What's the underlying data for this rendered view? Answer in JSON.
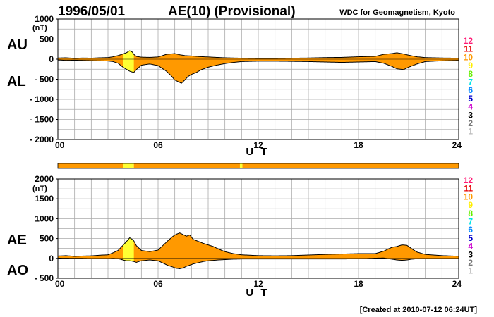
{
  "header": {
    "date": "1996/05/01",
    "title": "AE(10) (Provisional)",
    "source": "WDC for Geomagnetism, Kyoto"
  },
  "footer": {
    "created": "[Created at 2010-07-12 06:24UT]"
  },
  "colors": {
    "fill_main": "#ff9900",
    "fill_highlight": "#ffff33",
    "outline": "#000000",
    "grid": "#aaaaaa",
    "status_bar": "#ff9900"
  },
  "legend": {
    "items": [
      {
        "label": "12",
        "color": "#ff1a75"
      },
      {
        "label": "11",
        "color": "#e60000"
      },
      {
        "label": "10",
        "color": "#ff9900"
      },
      {
        "label": "9",
        "color": "#ffee00"
      },
      {
        "label": "8",
        "color": "#66ee00"
      },
      {
        "label": "7",
        "color": "#00e6e6"
      },
      {
        "label": "6",
        "color": "#0088ff"
      },
      {
        "label": "5",
        "color": "#0000cc"
      },
      {
        "label": "4",
        "color": "#cc00cc"
      },
      {
        "label": "3",
        "color": "#000000"
      },
      {
        "label": "2",
        "color": "#777777"
      },
      {
        "label": "1",
        "color": "#bbbbbb"
      }
    ]
  },
  "status_bar": {
    "segments": [
      {
        "from": 0,
        "to": 3.9,
        "color": "#ff9900"
      },
      {
        "from": 3.9,
        "to": 4.55,
        "color": "#ffff33"
      },
      {
        "from": 4.55,
        "to": 10.9,
        "color": "#ff9900"
      },
      {
        "from": 10.9,
        "to": 11.05,
        "color": "#ffff33"
      },
      {
        "from": 11.05,
        "to": 24,
        "color": "#ff9900"
      }
    ]
  },
  "chart_data": [
    {
      "type": "area",
      "xlabel": "U T",
      "unit": "(nT)",
      "labels_side": {
        "upper": "AU",
        "lower": "AL"
      },
      "xlim": [
        0,
        24
      ],
      "ylim": [
        -2000,
        1000
      ],
      "y_ticks": [
        1000,
        500,
        0,
        -500,
        -1000,
        -1500,
        -2000
      ],
      "y_tick_labels": [
        "1000",
        "500",
        "0",
        "- 500",
        "- 1000",
        "- 1500",
        "- 2000"
      ],
      "x_ticks": [
        0,
        6,
        12,
        18,
        24
      ],
      "x_tick_labels": [
        "00",
        "06",
        "12",
        "18",
        "24"
      ],
      "grid": true,
      "highlight_x": [
        3.9,
        4.55
      ],
      "series": [
        {
          "name": "AU",
          "x": [
            0,
            0.5,
            1,
            1.5,
            2,
            2.5,
            3,
            3.3,
            3.6,
            3.9,
            4.1,
            4.3,
            4.45,
            4.55,
            4.7,
            5.0,
            5.5,
            6.0,
            6.5,
            7.0,
            7.3,
            7.6,
            8.0,
            8.5,
            9.0,
            9.5,
            10.0,
            10.5,
            11.0,
            12.0,
            13.0,
            14.0,
            15.0,
            16.0,
            17.0,
            18.0,
            19.0,
            19.5,
            20.0,
            20.3,
            20.7,
            21.0,
            21.5,
            22.0,
            23.0,
            24.0
          ],
          "values": [
            30,
            35,
            20,
            30,
            25,
            35,
            40,
            60,
            90,
            130,
            160,
            210,
            180,
            120,
            70,
            50,
            45,
            55,
            120,
            140,
            110,
            90,
            80,
            65,
            55,
            45,
            35,
            30,
            25,
            20,
            20,
            25,
            30,
            40,
            45,
            60,
            70,
            120,
            140,
            160,
            130,
            100,
            60,
            40,
            30,
            25
          ]
        },
        {
          "name": "AL",
          "x": [
            0,
            0.5,
            1,
            1.5,
            2,
            2.5,
            3,
            3.3,
            3.6,
            3.9,
            4.1,
            4.3,
            4.45,
            4.55,
            4.7,
            5.0,
            5.5,
            6.0,
            6.5,
            6.8,
            7.0,
            7.2,
            7.4,
            7.6,
            7.8,
            8.0,
            8.3,
            8.6,
            9.0,
            9.5,
            10.0,
            10.5,
            11.0,
            12.0,
            13.0,
            14.0,
            15.0,
            16.0,
            17.0,
            18.0,
            19.0,
            19.5,
            20.0,
            20.3,
            20.7,
            21.0,
            21.5,
            22.0,
            23.0,
            24.0
          ],
          "values": [
            -20,
            -30,
            -25,
            -30,
            -35,
            -40,
            -45,
            -60,
            -100,
            -200,
            -250,
            -300,
            -320,
            -330,
            -260,
            -150,
            -120,
            -160,
            -300,
            -420,
            -520,
            -560,
            -600,
            -520,
            -430,
            -380,
            -330,
            -260,
            -200,
            -150,
            -110,
            -80,
            -60,
            -50,
            -50,
            -55,
            -60,
            -70,
            -80,
            -70,
            -60,
            -100,
            -180,
            -240,
            -260,
            -200,
            -120,
            -60,
            -40,
            -30
          ]
        }
      ]
    },
    {
      "type": "area",
      "xlabel": "U T",
      "unit": "(nT)",
      "labels_side": {
        "upper": "AE",
        "lower": "AO"
      },
      "xlim": [
        0,
        24
      ],
      "ylim": [
        -500,
        2000
      ],
      "y_ticks": [
        2000,
        1500,
        1000,
        500,
        0,
        -500
      ],
      "y_tick_labels": [
        "2000",
        "1500",
        "1000",
        "500",
        "0",
        "- 500"
      ],
      "x_ticks": [
        0,
        6,
        12,
        18,
        24
      ],
      "x_tick_labels": [
        "00",
        "06",
        "12",
        "18",
        "24"
      ],
      "grid": true,
      "highlight_x": [
        3.9,
        4.55
      ],
      "series": [
        {
          "name": "AE",
          "x": [
            0,
            0.5,
            1,
            1.5,
            2,
            2.5,
            3,
            3.3,
            3.6,
            3.9,
            4.1,
            4.3,
            4.45,
            4.55,
            4.7,
            5.0,
            5.5,
            6.0,
            6.3,
            6.6,
            6.9,
            7.1,
            7.3,
            7.5,
            7.7,
            7.9,
            8.1,
            8.4,
            8.7,
            9.0,
            9.3,
            9.6,
            10.0,
            10.5,
            11.0,
            12.0,
            13.0,
            14.0,
            15.0,
            16.0,
            17.0,
            18.0,
            19.0,
            19.5,
            20.0,
            20.3,
            20.6,
            20.9,
            21.2,
            21.5,
            22.0,
            23.0,
            24.0
          ],
          "values": [
            60,
            70,
            50,
            60,
            65,
            80,
            90,
            140,
            200,
            330,
            420,
            520,
            480,
            440,
            320,
            200,
            170,
            210,
            330,
            450,
            560,
            610,
            640,
            600,
            560,
            590,
            480,
            430,
            380,
            340,
            300,
            240,
            170,
            120,
            90,
            70,
            65,
            70,
            85,
            100,
            110,
            120,
            120,
            180,
            280,
            300,
            340,
            330,
            240,
            160,
            100,
            70,
            55
          ]
        },
        {
          "name": "AO",
          "x": [
            0,
            0.5,
            1,
            1.5,
            2,
            2.5,
            3,
            3.3,
            3.6,
            3.9,
            4.1,
            4.3,
            4.45,
            4.55,
            4.7,
            5.0,
            5.5,
            6.0,
            6.3,
            6.6,
            6.9,
            7.1,
            7.3,
            7.5,
            7.7,
            7.9,
            8.1,
            8.4,
            8.7,
            9.0,
            9.3,
            9.6,
            10.0,
            10.5,
            11.0,
            12.0,
            13.0,
            14.0,
            15.0,
            16.0,
            17.0,
            18.0,
            19.0,
            19.5,
            20.0,
            20.3,
            20.6,
            20.9,
            21.2,
            21.5,
            22.0,
            23.0,
            24.0
          ],
          "values": [
            5,
            3,
            0,
            0,
            -5,
            -5,
            -5,
            0,
            -5,
            -40,
            -60,
            -60,
            -70,
            -80,
            -100,
            -60,
            -40,
            -60,
            -120,
            -180,
            -220,
            -250,
            -260,
            -240,
            -200,
            -170,
            -140,
            -110,
            -80,
            -60,
            -50,
            -40,
            -30,
            -20,
            -15,
            -15,
            -15,
            -15,
            -15,
            -15,
            -15,
            -10,
            5,
            10,
            -20,
            -40,
            -50,
            -40,
            -20,
            -10,
            -5,
            -5,
            -5
          ]
        }
      ]
    }
  ]
}
